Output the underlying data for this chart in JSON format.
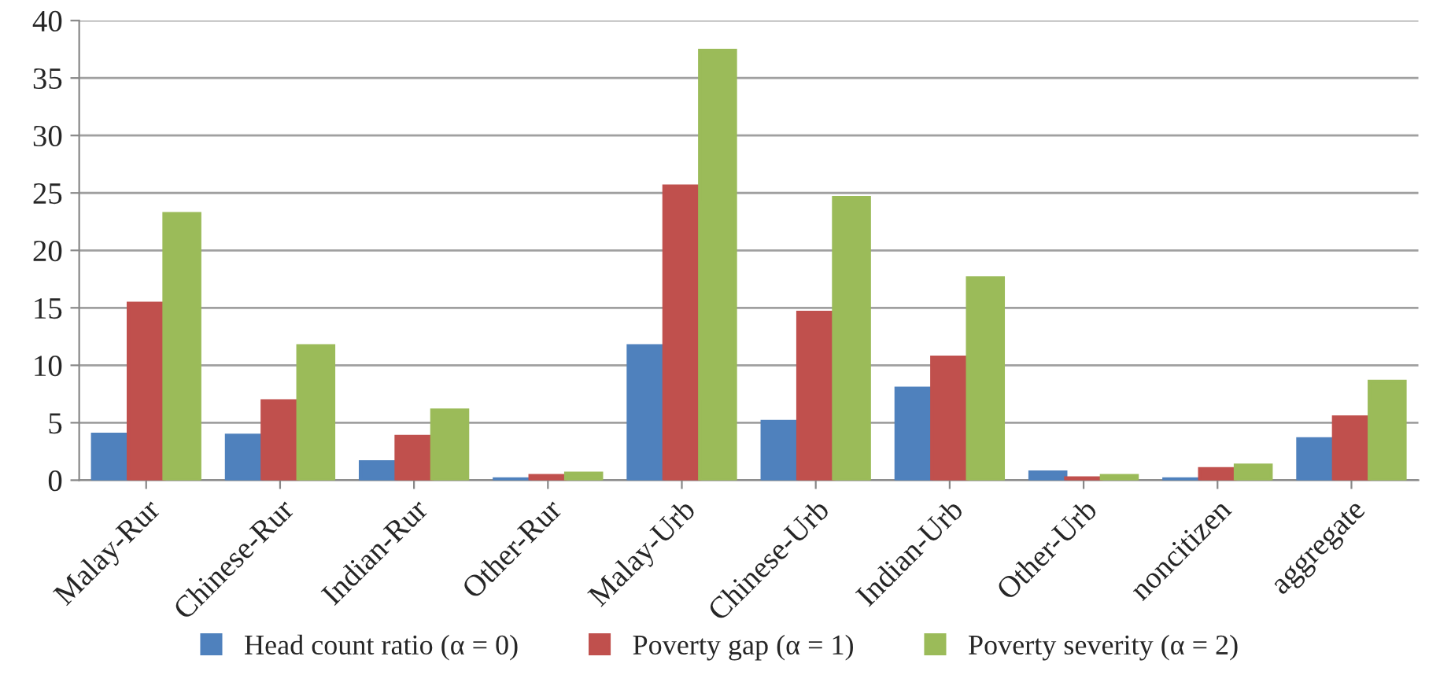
{
  "chart_data": {
    "type": "bar",
    "categories": [
      "Malay-Rur",
      "Chinese-Rur",
      "Indian-Rur",
      "Other-Rur",
      "Malay-Urb",
      "Chinese-Urb",
      "Indian-Urb",
      "Other-Urb",
      "noncitizen",
      "aggregate"
    ],
    "series": [
      {
        "name": "Head count ratio (α = 0)",
        "color": "#4f81bd",
        "values": [
          4.0,
          3.9,
          1.6,
          0.1,
          11.7,
          5.1,
          8.0,
          0.7,
          0.1,
          3.6
        ]
      },
      {
        "name": "Poverty gap (α = 1)",
        "color": "#c0504d",
        "values": [
          15.4,
          6.9,
          3.8,
          0.4,
          25.6,
          14.6,
          10.7,
          0.2,
          1.0,
          5.5
        ]
      },
      {
        "name": "Poverty severity (α = 2)",
        "color": "#9bbb59",
        "values": [
          23.2,
          11.7,
          6.1,
          0.6,
          37.4,
          24.6,
          17.6,
          0.4,
          1.3,
          8.6
        ]
      }
    ],
    "ylim": [
      0,
      40
    ],
    "yticks": [
      0,
      5,
      10,
      15,
      20,
      25,
      30,
      35,
      40
    ],
    "grid": "y",
    "legend": "bottom"
  }
}
